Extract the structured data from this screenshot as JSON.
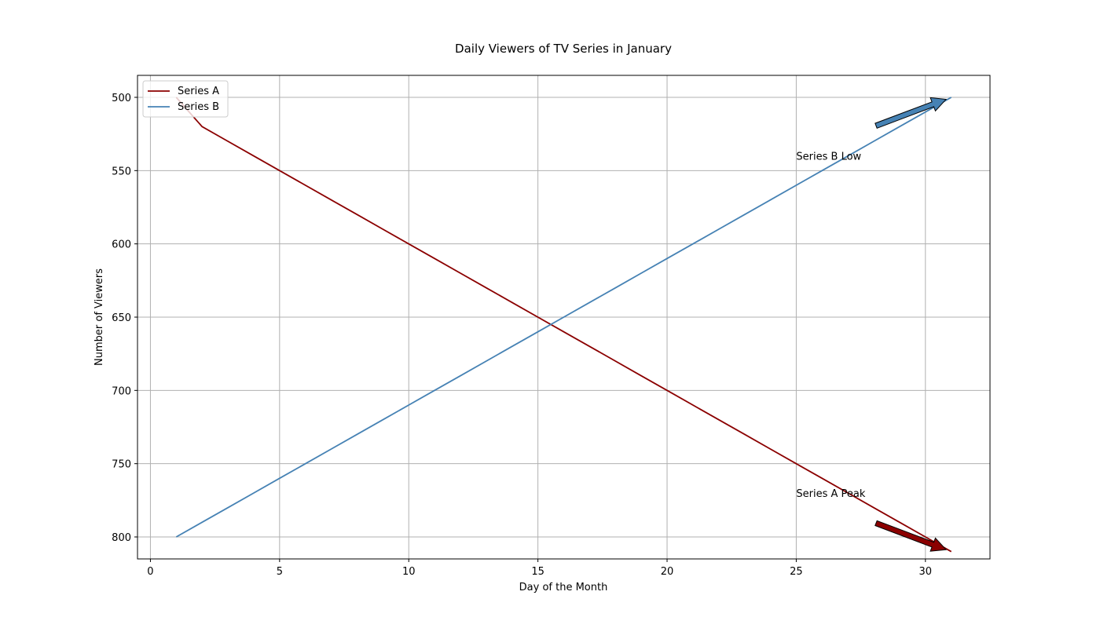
{
  "chart_data": {
    "type": "line",
    "title": "Daily Viewers of TV Series in January",
    "xlabel": "Day of the Month",
    "ylabel": "Number of Viewers",
    "xlim": [
      -0.5,
      32.5
    ],
    "ylim": [
      815,
      485
    ],
    "y_inverted": true,
    "xticks": [
      0,
      5,
      10,
      15,
      20,
      25,
      30
    ],
    "yticks": [
      500,
      550,
      600,
      650,
      700,
      750,
      800
    ],
    "grid": true,
    "legend": "top-left",
    "series": [
      {
        "name": "Series A",
        "color": "#8b0000",
        "x": [
          1,
          2,
          3,
          4,
          5,
          6,
          7,
          8,
          9,
          10,
          11,
          12,
          13,
          14,
          15,
          16,
          17,
          18,
          19,
          20,
          21,
          22,
          23,
          24,
          25,
          26,
          27,
          28,
          29,
          30,
          31
        ],
        "y": [
          500,
          520,
          530,
          540,
          550,
          560,
          570,
          580,
          590,
          600,
          610,
          620,
          630,
          640,
          650,
          660,
          670,
          680,
          690,
          700,
          710,
          720,
          730,
          740,
          750,
          760,
          770,
          780,
          790,
          800,
          810
        ]
      },
      {
        "name": "Series B",
        "color": "#4682b4",
        "x": [
          1,
          2,
          3,
          4,
          5,
          6,
          7,
          8,
          9,
          10,
          11,
          12,
          13,
          14,
          15,
          16,
          17,
          18,
          19,
          20,
          21,
          22,
          23,
          24,
          25,
          26,
          27,
          28,
          29,
          30,
          31
        ],
        "y": [
          800,
          790,
          780,
          770,
          760,
          750,
          740,
          730,
          720,
          710,
          700,
          690,
          680,
          670,
          660,
          650,
          640,
          630,
          620,
          610,
          600,
          590,
          580,
          570,
          560,
          550,
          540,
          530,
          520,
          510,
          500
        ]
      }
    ],
    "annotations": [
      {
        "text": "Series B Low",
        "xy": [
          31,
          500
        ],
        "xytext": [
          25,
          540
        ],
        "color": "#4682b4"
      },
      {
        "text": "Series A Peak",
        "xy": [
          31,
          810
        ],
        "xytext": [
          25,
          770
        ],
        "color": "#8b0000"
      }
    ]
  }
}
